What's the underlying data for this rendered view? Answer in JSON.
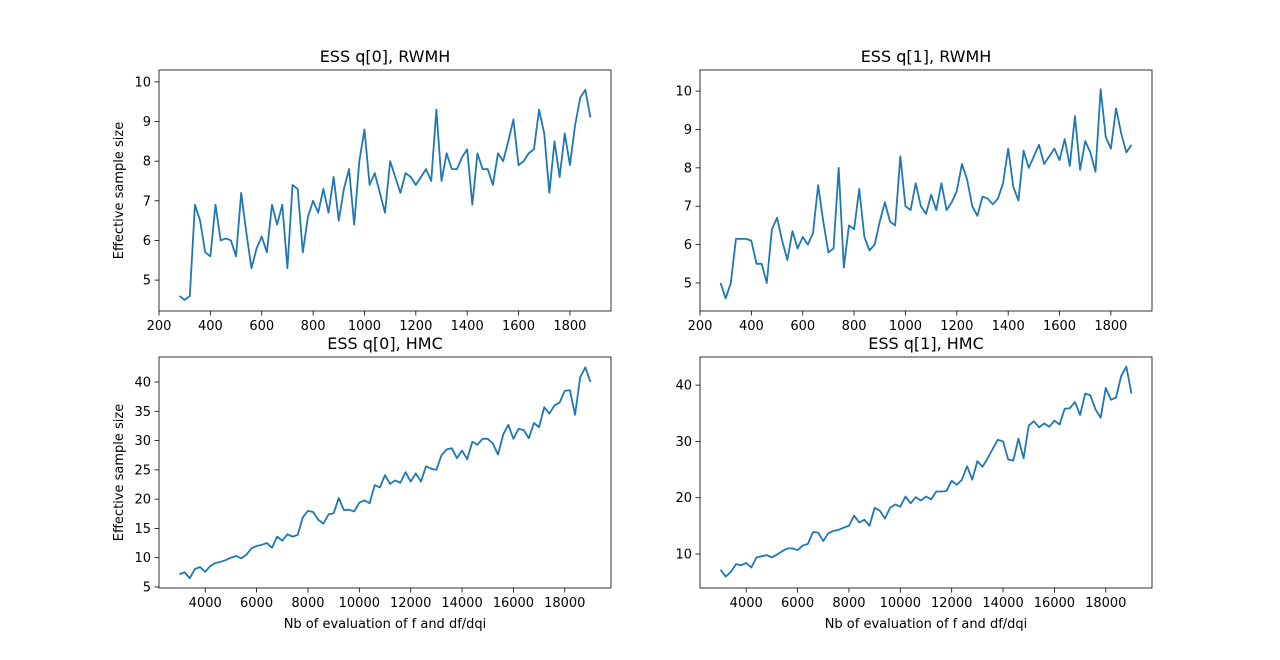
{
  "chart_data": [
    {
      "type": "line",
      "title": "ESS q[0], RWMH",
      "ylabel": "Effective sample size",
      "color": "#1f77b4",
      "x": [
        280,
        300,
        320,
        340,
        360,
        380,
        400,
        420,
        440,
        460,
        480,
        500,
        520,
        540,
        560,
        580,
        600,
        620,
        640,
        660,
        680,
        700,
        720,
        740,
        760,
        780,
        800,
        820,
        840,
        860,
        880,
        900,
        920,
        940,
        960,
        980,
        1000,
        1020,
        1040,
        1060,
        1080,
        1100,
        1120,
        1140,
        1160,
        1180,
        1200,
        1220,
        1240,
        1260,
        1280,
        1300,
        1320,
        1340,
        1360,
        1380,
        1400,
        1420,
        1440,
        1460,
        1480,
        1500,
        1520,
        1540,
        1560,
        1580,
        1600,
        1620,
        1640,
        1660,
        1680,
        1700,
        1720,
        1740,
        1760,
        1780,
        1800,
        1820,
        1840,
        1860,
        1880
      ],
      "values": [
        4.6,
        4.5,
        4.6,
        6.9,
        6.5,
        5.7,
        5.6,
        6.9,
        6.0,
        6.05,
        6.0,
        5.6,
        7.2,
        6.2,
        5.3,
        5.8,
        6.1,
        5.7,
        6.9,
        6.4,
        6.9,
        5.3,
        7.4,
        7.3,
        5.7,
        6.6,
        7.0,
        6.7,
        7.3,
        6.7,
        7.6,
        6.5,
        7.3,
        7.8,
        6.4,
        8.0,
        8.8,
        7.4,
        7.7,
        7.2,
        6.7,
        8.0,
        7.6,
        7.2,
        7.7,
        7.6,
        7.4,
        7.6,
        7.8,
        7.5,
        9.3,
        7.5,
        8.2,
        7.8,
        7.8,
        8.1,
        8.3,
        6.9,
        8.2,
        7.8,
        7.8,
        7.4,
        8.2,
        8.0,
        8.5,
        9.05,
        7.9,
        8.0,
        8.2,
        8.3,
        9.3,
        8.7,
        7.2,
        8.5,
        7.6,
        8.7,
        7.9,
        8.9,
        9.6,
        9.8,
        9.1
      ],
      "xlim": [
        200,
        1960
      ],
      "xticks": [
        200,
        400,
        600,
        800,
        1000,
        1200,
        1400,
        1600,
        1800
      ],
      "ylim": [
        4.22,
        10.3
      ],
      "yticks": [
        5,
        6,
        7,
        8,
        9,
        10
      ]
    },
    {
      "type": "line",
      "title": "ESS q[1], RWMH",
      "color": "#1f77b4",
      "x": [
        280,
        300,
        320,
        340,
        360,
        380,
        400,
        420,
        440,
        460,
        480,
        500,
        520,
        540,
        560,
        580,
        600,
        620,
        640,
        660,
        680,
        700,
        720,
        740,
        760,
        780,
        800,
        820,
        840,
        860,
        880,
        900,
        920,
        940,
        960,
        980,
        1000,
        1020,
        1040,
        1060,
        1080,
        1100,
        1120,
        1140,
        1160,
        1180,
        1200,
        1220,
        1240,
        1260,
        1280,
        1300,
        1320,
        1340,
        1360,
        1380,
        1400,
        1420,
        1440,
        1460,
        1480,
        1500,
        1520,
        1540,
        1560,
        1580,
        1600,
        1620,
        1640,
        1660,
        1680,
        1700,
        1720,
        1740,
        1760,
        1780,
        1800,
        1820,
        1840,
        1860,
        1880
      ],
      "values": [
        5.0,
        4.6,
        5.0,
        6.15,
        6.15,
        6.15,
        6.1,
        5.5,
        5.5,
        5.0,
        6.4,
        6.7,
        6.1,
        5.6,
        6.35,
        5.9,
        6.2,
        6.0,
        6.3,
        7.55,
        6.6,
        5.8,
        5.9,
        8.0,
        5.4,
        6.5,
        6.4,
        7.45,
        6.2,
        5.85,
        6.0,
        6.6,
        7.1,
        6.6,
        6.5,
        8.3,
        7.0,
        6.9,
        7.6,
        7.0,
        6.8,
        7.3,
        6.9,
        7.6,
        6.9,
        7.1,
        7.4,
        8.1,
        7.7,
        7.0,
        6.75,
        7.25,
        7.2,
        7.05,
        7.2,
        7.6,
        8.5,
        7.5,
        7.15,
        8.45,
        8.0,
        8.3,
        8.6,
        8.1,
        8.3,
        8.5,
        8.2,
        8.75,
        8.05,
        9.35,
        7.95,
        8.7,
        8.4,
        7.9,
        10.05,
        8.8,
        8.5,
        9.55,
        8.9,
        8.4,
        8.6
      ],
      "xlim": [
        200,
        1960
      ],
      "xticks": [
        200,
        400,
        600,
        800,
        1000,
        1200,
        1400,
        1600,
        1800
      ],
      "ylim": [
        4.27,
        10.55
      ],
      "yticks": [
        5,
        6,
        7,
        8,
        9,
        10
      ]
    },
    {
      "type": "line",
      "title": "ESS q[0], HMC",
      "ylabel": "Effective sample size",
      "xlabel": "Nb of evaluation of f and df/dqi",
      "color": "#1f77b4",
      "x": [
        3000,
        3200,
        3400,
        3600,
        3800,
        4000,
        4200,
        4400,
        4600,
        4800,
        5000,
        5200,
        5400,
        5600,
        5800,
        6000,
        6200,
        6400,
        6600,
        6800,
        7000,
        7200,
        7400,
        7600,
        7800,
        8000,
        8200,
        8400,
        8600,
        8800,
        9000,
        9200,
        9400,
        9600,
        9800,
        10000,
        10200,
        10400,
        10600,
        10800,
        11000,
        11200,
        11400,
        11600,
        11800,
        12000,
        12200,
        12400,
        12600,
        12800,
        13000,
        13200,
        13400,
        13600,
        13800,
        14000,
        14200,
        14400,
        14600,
        14800,
        15000,
        15200,
        15400,
        15600,
        15800,
        16000,
        16200,
        16400,
        16600,
        16800,
        17000,
        17200,
        17400,
        17600,
        17800,
        18000,
        18200,
        18400,
        18600,
        18800,
        19000
      ],
      "values": [
        7.2,
        7.5,
        6.5,
        8.1,
        8.4,
        7.6,
        8.6,
        9.1,
        9.3,
        9.6,
        10.0,
        10.3,
        9.9,
        10.5,
        11.6,
        12.0,
        12.2,
        12.5,
        11.7,
        13.6,
        12.9,
        14.0,
        13.6,
        13.9,
        16.9,
        18.0,
        17.8,
        16.5,
        15.8,
        17.4,
        17.6,
        20.2,
        18.1,
        18.2,
        17.9,
        19.4,
        19.8,
        19.3,
        22.4,
        22.0,
        24.1,
        22.6,
        23.2,
        22.8,
        24.6,
        23.0,
        24.4,
        23.0,
        25.6,
        25.2,
        25.0,
        27.5,
        28.5,
        28.7,
        27.0,
        28.3,
        26.8,
        29.8,
        29.3,
        30.3,
        30.3,
        29.5,
        27.6,
        31.0,
        32.7,
        30.3,
        32.0,
        31.8,
        30.4,
        33.0,
        32.3,
        35.7,
        34.6,
        36.0,
        36.5,
        38.5,
        38.6,
        34.4,
        40.8,
        42.5,
        40.0
      ],
      "xlim": [
        2200,
        19800
      ],
      "xticks": [
        4000,
        6000,
        8000,
        10000,
        12000,
        14000,
        16000,
        18000
      ],
      "ylim": [
        4.83,
        44.27
      ],
      "yticks": [
        5,
        10,
        15,
        20,
        25,
        30,
        35,
        40
      ]
    },
    {
      "type": "line",
      "title": "ESS q[1], HMC",
      "xlabel": "Nb of evaluation of f and df/dqi",
      "color": "#1f77b4",
      "x": [
        3000,
        3200,
        3400,
        3600,
        3800,
        4000,
        4200,
        4400,
        4600,
        4800,
        5000,
        5200,
        5400,
        5600,
        5800,
        6000,
        6200,
        6400,
        6600,
        6800,
        7000,
        7200,
        7400,
        7600,
        7800,
        8000,
        8200,
        8400,
        8600,
        8800,
        9000,
        9200,
        9400,
        9600,
        9800,
        10000,
        10200,
        10400,
        10600,
        10800,
        11000,
        11200,
        11400,
        11600,
        11800,
        12000,
        12200,
        12400,
        12600,
        12800,
        13000,
        13200,
        13400,
        13600,
        13800,
        14000,
        14200,
        14400,
        14600,
        14800,
        15000,
        15200,
        15400,
        15600,
        15800,
        16000,
        16200,
        16400,
        16600,
        16800,
        17000,
        17200,
        17400,
        17600,
        17800,
        18000,
        18200,
        18400,
        18600,
        18800,
        19000
      ],
      "values": [
        7.2,
        6.0,
        6.8,
        8.2,
        8.0,
        8.4,
        7.6,
        9.4,
        9.6,
        9.8,
        9.4,
        9.9,
        10.5,
        11.0,
        11.0,
        10.7,
        11.5,
        11.8,
        13.9,
        13.8,
        12.3,
        13.7,
        14.1,
        14.3,
        14.7,
        15.0,
        16.8,
        15.6,
        16.1,
        15.0,
        18.2,
        17.7,
        16.3,
        18.2,
        18.8,
        18.4,
        20.2,
        19.0,
        20.1,
        19.5,
        20.2,
        19.7,
        21.1,
        21.1,
        21.2,
        23.0,
        22.3,
        23.2,
        25.6,
        23.2,
        26.5,
        25.5,
        27.0,
        28.7,
        30.3,
        30.0,
        26.8,
        26.6,
        30.5,
        27.0,
        32.8,
        33.6,
        32.5,
        33.2,
        32.6,
        33.7,
        33.0,
        35.8,
        35.9,
        37.0,
        34.7,
        38.5,
        38.2,
        35.7,
        34.2,
        39.5,
        37.4,
        37.8,
        41.6,
        43.3,
        38.5
      ],
      "xlim": [
        2200,
        19800
      ],
      "xticks": [
        4000,
        6000,
        8000,
        10000,
        12000,
        14000,
        16000,
        18000
      ],
      "ylim": [
        3.96,
        45.0
      ],
      "yticks": [
        10,
        20,
        30,
        40
      ]
    }
  ]
}
